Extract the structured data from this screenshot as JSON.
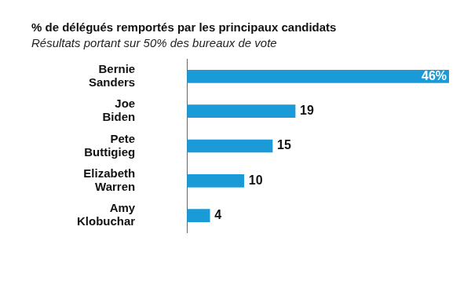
{
  "chart_data": {
    "type": "bar",
    "title": "% de délégués remportés par les principaux candidats",
    "subtitle": "Résultats portant sur 50% des bureaux de vote",
    "orientation": "horizontal",
    "categories": [
      "Bernie Sanders",
      "Joe Biden",
      "Pete Buttigieg",
      "Elizabeth Warren",
      "Amy Klobuchar"
    ],
    "values": [
      46,
      19,
      15,
      10,
      4
    ],
    "value_labels": [
      "46%",
      "19",
      "15",
      "10",
      "4"
    ],
    "color": "#1a9ad6",
    "xlim": [
      0,
      46
    ],
    "data_labels": true,
    "tick_labels": "y",
    "grid": false
  }
}
